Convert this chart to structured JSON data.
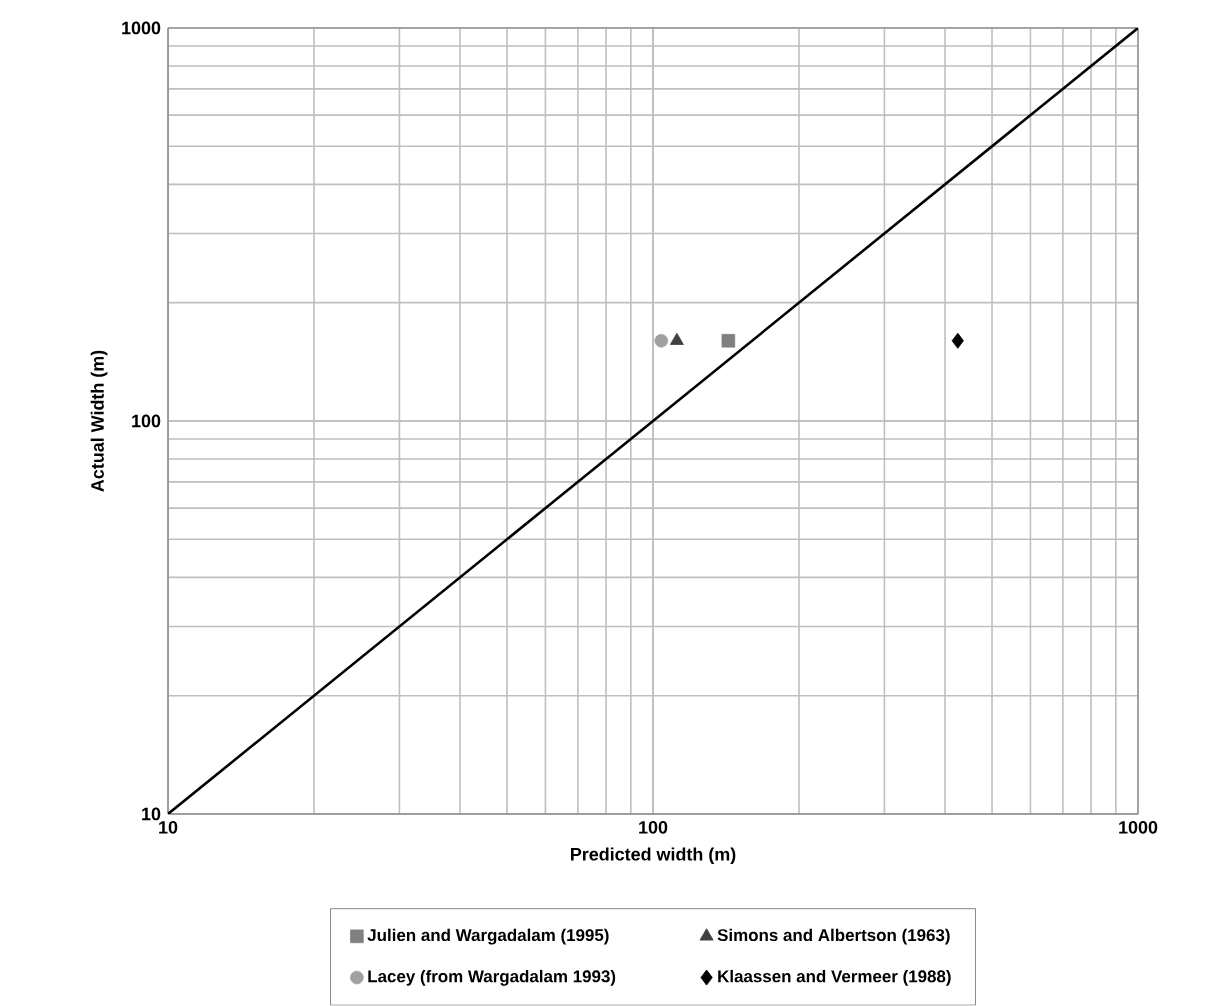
{
  "chart_data": {
    "type": "scatter",
    "xlabel": "Predicted width (m)",
    "ylabel": "Actual Width (m)",
    "log": "xy",
    "xlim": [
      10,
      1000
    ],
    "ylim": [
      10,
      1000
    ],
    "xticks": [
      10,
      100,
      1000
    ],
    "yticks": [
      10,
      100,
      1000
    ],
    "grid": true,
    "legend": "bottom",
    "series": [
      {
        "name": "Julien and Wargadalam (1995)",
        "color": "#808080",
        "marker": "square",
        "x": [
          143
        ],
        "values": [
          160
        ]
      },
      {
        "name": "Simons and Albertson (1963)",
        "color": "#404040",
        "marker": "triangle",
        "x": [
          112
        ],
        "values": [
          160
        ]
      },
      {
        "name": "Lacey (from Wargadalam 1993)",
        "color": "#a0a0a0",
        "marker": "circle",
        "x": [
          104
        ],
        "values": [
          160
        ]
      },
      {
        "name": "Klaassen and Vermeer (1988)",
        "color": "#000000",
        "marker": "diamond",
        "x": [
          425
        ],
        "values": [
          160
        ]
      },
      {
        "type": "line",
        "color": "#000000",
        "marker": "none",
        "x": [
          10,
          1000
        ],
        "values": [
          10,
          1000
        ]
      }
    ]
  }
}
